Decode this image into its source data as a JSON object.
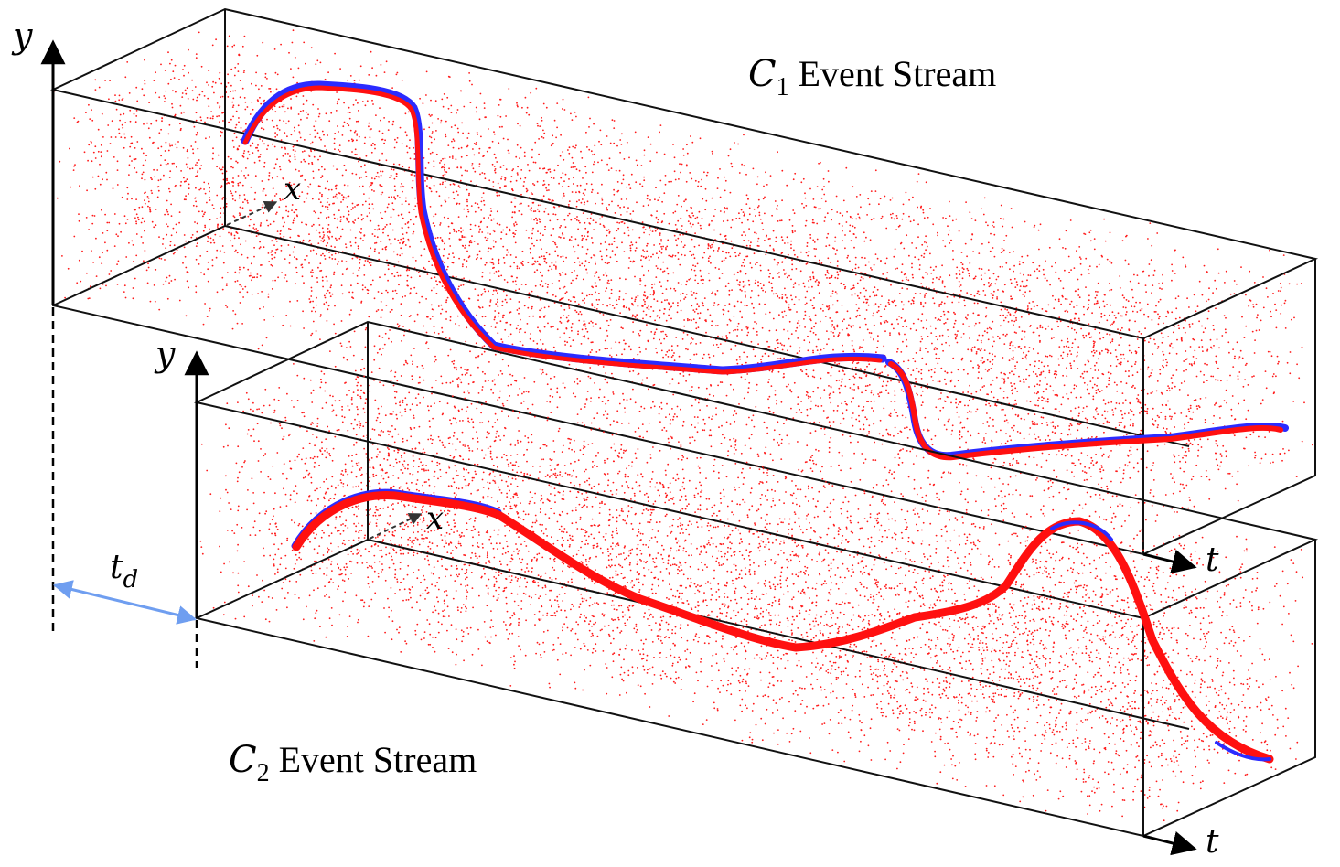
{
  "streams": [
    {
      "camera": "C",
      "camera_sub": "1",
      "title_rest": " Event Stream",
      "axis_y": "y",
      "axis_x": "x",
      "axis_t": "t"
    },
    {
      "camera": "C",
      "camera_sub": "2",
      "title_rest": " Event Stream",
      "axis_y": "y",
      "axis_x": "x",
      "axis_t": "t"
    }
  ],
  "delay": {
    "symbol": "t",
    "sub": "d"
  },
  "colors": {
    "noise": "#ff1a1a",
    "trajectory": "#ff1010",
    "trajectory_alt": "#2b2bff",
    "edge": "#111111",
    "delay_arrow": "#6f9ef0"
  }
}
